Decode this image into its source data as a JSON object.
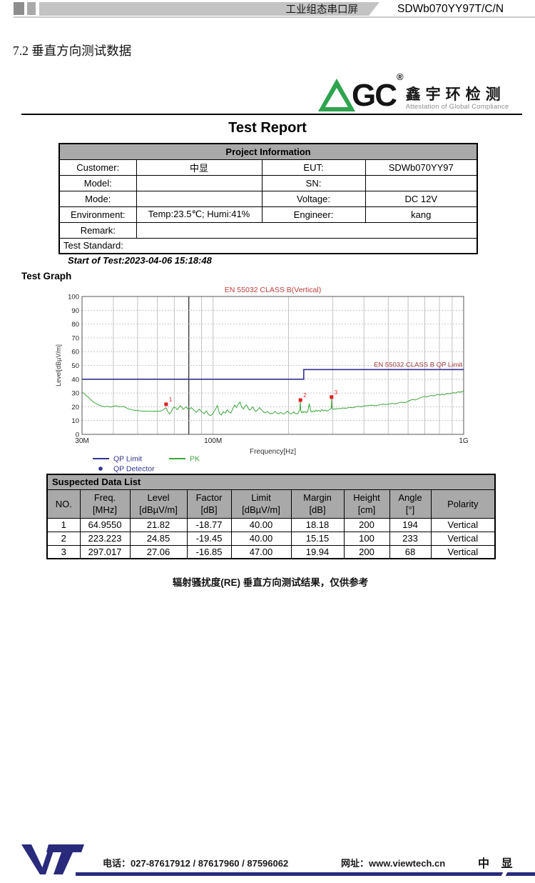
{
  "header": {
    "product_type": "工业组态串口屏",
    "model": "SDWb070YY97T/C/N"
  },
  "section_title": "7.2 垂直方向测试数据",
  "logo": {
    "acronym_rest": "GC",
    "registered": "®",
    "chinese": "鑫宇环检测",
    "tagline": "Attestation of Global Compliance",
    "green": "#2ea44f"
  },
  "report": {
    "title": "Test Report",
    "project_info": {
      "header": "Project Information",
      "rows": [
        [
          "Customer:",
          "中显",
          "EUT:",
          "SDWb070YY97"
        ],
        [
          "Model:",
          "",
          "SN:",
          ""
        ],
        [
          "Mode:",
          "",
          "Voltage:",
          "DC 12V"
        ],
        [
          "Environment:",
          "Temp:23.5℃; Humi:41%",
          "Engineer:",
          "kang"
        ]
      ],
      "remark_label": "Remark:",
      "remark_value": "",
      "test_standard_label": "Test Standard:"
    },
    "start_of_test": "Start of Test:2023-04-06 15:18:48",
    "test_graph_label": "Test Graph"
  },
  "chart_data": {
    "type": "line",
    "title": "EN 55032 CLASS B(Vertical)",
    "title_color": "#c03c3c",
    "xlabel": "Frequency[Hz]",
    "ylabel": "Level[dBµV/m]",
    "x_scale": "log",
    "xlim_mhz": [
      30,
      1000
    ],
    "ylim": [
      0,
      100
    ],
    "y_ticks": [
      0,
      10,
      20,
      30,
      40,
      50,
      60,
      70,
      80,
      90,
      100
    ],
    "x_tick_labels": [
      {
        "mhz": 30,
        "label": "30M"
      },
      {
        "mhz": 100,
        "label": "100M"
      },
      {
        "mhz": 1000,
        "label": "1G"
      }
    ],
    "grid_v_mhz": [
      40,
      50,
      60,
      70,
      90,
      100,
      200,
      300,
      400,
      500,
      600,
      700,
      800,
      900
    ],
    "band_boundary_mhz": 80,
    "limit_label": "EN 55032 CLASS B QP Limit",
    "limit_label_color": "#a34040",
    "series": [
      {
        "name": "QP Limit",
        "color": "#32328e",
        "width": 1.6,
        "points_mhz_db": [
          [
            30,
            40
          ],
          [
            230,
            40
          ],
          [
            230,
            47
          ],
          [
            1000,
            47
          ]
        ]
      },
      {
        "name": "PK",
        "color": "#3ca63c",
        "width": 1,
        "points_mhz_db": [
          [
            30,
            31
          ],
          [
            31,
            28.5
          ],
          [
            32,
            26.5
          ],
          [
            33,
            24
          ],
          [
            34,
            22.5
          ],
          [
            35,
            21.3
          ],
          [
            36,
            20.4
          ],
          [
            37,
            20
          ],
          [
            38,
            20.3
          ],
          [
            39,
            19.8
          ],
          [
            40,
            20.4
          ],
          [
            41,
            20.7
          ],
          [
            42,
            20
          ],
          [
            44,
            20.2
          ],
          [
            45,
            19.3
          ],
          [
            46,
            18.5
          ],
          [
            48,
            17.6
          ],
          [
            50,
            17.2
          ],
          [
            52,
            16.9
          ],
          [
            54,
            16.8
          ],
          [
            56,
            16.7
          ],
          [
            58,
            16.8
          ],
          [
            60,
            16.7
          ],
          [
            62,
            16.9
          ],
          [
            63,
            17.6
          ],
          [
            64,
            18.6
          ],
          [
            65,
            19.2
          ],
          [
            66,
            16.4
          ],
          [
            67,
            14.8
          ],
          [
            68,
            16.3
          ],
          [
            69,
            18.8
          ],
          [
            70,
            20
          ],
          [
            71,
            19.1
          ],
          [
            72,
            17.8
          ],
          [
            73,
            19.4
          ],
          [
            74,
            20.7
          ],
          [
            75,
            19.5
          ],
          [
            76,
            18.2
          ],
          [
            77,
            19
          ],
          [
            78,
            20.1
          ],
          [
            79,
            18.9
          ],
          [
            80,
            18
          ],
          [
            82,
            19.4
          ],
          [
            84,
            17.4
          ],
          [
            86,
            16
          ],
          [
            88,
            18.4
          ],
          [
            90,
            16.4
          ],
          [
            92,
            15
          ],
          [
            94,
            17
          ],
          [
            96,
            14.2
          ],
          [
            98,
            13.6
          ],
          [
            100,
            15.4
          ],
          [
            102,
            17.8
          ],
          [
            104,
            21
          ],
          [
            106,
            15.2
          ],
          [
            108,
            14.1
          ],
          [
            110,
            16.4
          ],
          [
            112,
            15.4
          ],
          [
            114,
            17.9
          ],
          [
            116,
            16
          ],
          [
            118,
            15.6
          ],
          [
            120,
            18.9
          ],
          [
            122,
            21.4
          ],
          [
            124,
            19.4
          ],
          [
            126,
            21.9
          ],
          [
            128,
            23.4
          ],
          [
            130,
            19.9
          ],
          [
            132,
            18.4
          ],
          [
            134,
            20.4
          ],
          [
            136,
            21.4
          ],
          [
            138,
            19
          ],
          [
            140,
            17.6
          ],
          [
            142,
            18.6
          ],
          [
            144,
            19.9
          ],
          [
            146,
            17.9
          ],
          [
            148,
            16.6
          ],
          [
            150,
            17.4
          ],
          [
            153,
            19.4
          ],
          [
            156,
            17.9
          ],
          [
            159,
            16.1
          ],
          [
            162,
            15.6
          ],
          [
            165,
            16.6
          ],
          [
            168,
            15.3
          ],
          [
            171,
            14.9
          ],
          [
            174,
            15.6
          ],
          [
            177,
            16.6
          ],
          [
            180,
            15.2
          ],
          [
            183,
            14.9
          ],
          [
            186,
            16
          ],
          [
            189,
            15.1
          ],
          [
            192,
            14.7
          ],
          [
            195,
            15.9
          ],
          [
            198,
            16.9
          ],
          [
            201,
            15.6
          ],
          [
            204,
            14.9
          ],
          [
            207,
            15.3
          ],
          [
            210,
            16.3
          ],
          [
            213,
            15.1
          ],
          [
            216,
            14.8
          ],
          [
            219,
            15.6
          ],
          [
            222,
            18.1
          ],
          [
            223,
            24
          ],
          [
            224,
            17.1
          ],
          [
            226,
            15.6
          ],
          [
            228,
            16.6
          ],
          [
            230,
            15.9
          ],
          [
            233,
            16.6
          ],
          [
            236,
            15.6
          ],
          [
            239,
            16.9
          ],
          [
            242,
            22.4
          ],
          [
            245,
            17.1
          ],
          [
            248,
            16.1
          ],
          [
            251,
            17.1
          ],
          [
            254,
            16.3
          ],
          [
            257,
            17.6
          ],
          [
            260,
            16.9
          ],
          [
            264,
            17.3
          ],
          [
            268,
            16.6
          ],
          [
            272,
            17.9
          ],
          [
            276,
            17.1
          ],
          [
            280,
            17.6
          ],
          [
            284,
            16.9
          ],
          [
            288,
            17.3
          ],
          [
            292,
            17.9
          ],
          [
            296,
            19.1
          ],
          [
            297,
            26
          ],
          [
            298,
            19.6
          ],
          [
            300,
            18.1
          ],
          [
            305,
            18.6
          ],
          [
            310,
            18.3
          ],
          [
            315,
            18.9
          ],
          [
            320,
            18.6
          ],
          [
            330,
            19.1
          ],
          [
            340,
            18.9
          ],
          [
            350,
            19.6
          ],
          [
            360,
            19.3
          ],
          [
            370,
            19.9
          ],
          [
            380,
            20.3
          ],
          [
            390,
            19.9
          ],
          [
            400,
            20.6
          ],
          [
            415,
            20.9
          ],
          [
            430,
            21.1
          ],
          [
            445,
            20.7
          ],
          [
            460,
            21.4
          ],
          [
            475,
            21.9
          ],
          [
            490,
            21.6
          ],
          [
            505,
            22.1
          ],
          [
            520,
            22.5
          ],
          [
            535,
            22.1
          ],
          [
            550,
            22.9
          ],
          [
            565,
            23.3
          ],
          [
            580,
            22.9
          ],
          [
            595,
            23.6
          ],
          [
            610,
            24.6
          ],
          [
            625,
            25.3
          ],
          [
            640,
            24.9
          ],
          [
            655,
            25.6
          ],
          [
            670,
            26.6
          ],
          [
            685,
            27.1
          ],
          [
            700,
            27.5
          ],
          [
            715,
            27.1
          ],
          [
            730,
            27.9
          ],
          [
            745,
            28.3
          ],
          [
            760,
            27.9
          ],
          [
            775,
            28.5
          ],
          [
            790,
            28.9
          ],
          [
            805,
            28.5
          ],
          [
            820,
            29.1
          ],
          [
            835,
            28.7
          ],
          [
            850,
            29.3
          ],
          [
            865,
            29.7
          ],
          [
            880,
            29.3
          ],
          [
            895,
            29.9
          ],
          [
            910,
            30.3
          ],
          [
            925,
            29.9
          ],
          [
            940,
            30.5
          ],
          [
            955,
            30.9
          ],
          [
            970,
            30.5
          ],
          [
            985,
            31.1
          ],
          [
            1000,
            31.5
          ]
        ]
      }
    ],
    "markers": [
      {
        "no": "1",
        "freq_mhz": 64.955,
        "level_db": 21.82
      },
      {
        "no": "2",
        "freq_mhz": 223.223,
        "level_db": 24.85
      },
      {
        "no": "3",
        "freq_mhz": 297.017,
        "level_db": 27.06
      }
    ],
    "marker_color": "#e02020",
    "legend": [
      {
        "label": "QP Limit",
        "type": "line",
        "color": "#32328e"
      },
      {
        "label": "QP Detector",
        "type": "dot",
        "color": "#32328e"
      },
      {
        "label": "PK",
        "type": "line",
        "color": "#3ca63c"
      }
    ]
  },
  "suspected_table": {
    "title": "Suspected Data List",
    "columns": [
      [
        "NO.",
        ""
      ],
      [
        "Freq.",
        "[MHz]"
      ],
      [
        "Level",
        "[dBµV/m]"
      ],
      [
        "Factor",
        "[dB]"
      ],
      [
        "Limit",
        "[dBµV/m]"
      ],
      [
        "Margin",
        "[dB]"
      ],
      [
        "Height",
        "[cm]"
      ],
      [
        "Angle",
        "[°]"
      ],
      [
        "Polarity",
        ""
      ]
    ],
    "rows": [
      [
        "1",
        "64.9550",
        "21.82",
        "-18.77",
        "40.00",
        "18.18",
        "200",
        "194",
        "Vertical"
      ],
      [
        "2",
        "223.223",
        "24.85",
        "-19.45",
        "40.00",
        "15.15",
        "100",
        "233",
        "Vertical"
      ],
      [
        "3",
        "297.017",
        "27.06",
        "-16.85",
        "47.00",
        "19.94",
        "200",
        "68",
        "Vertical"
      ]
    ]
  },
  "caption": "辐射骚扰度(RE) 垂直方向测试结果，仅供参考",
  "footer": {
    "phone": "电话：027-87617912 / 87617960 / 87596062",
    "web": "网址：www.viewtech.cn",
    "brand": "中 显",
    "navy": "#2a2a7c"
  }
}
